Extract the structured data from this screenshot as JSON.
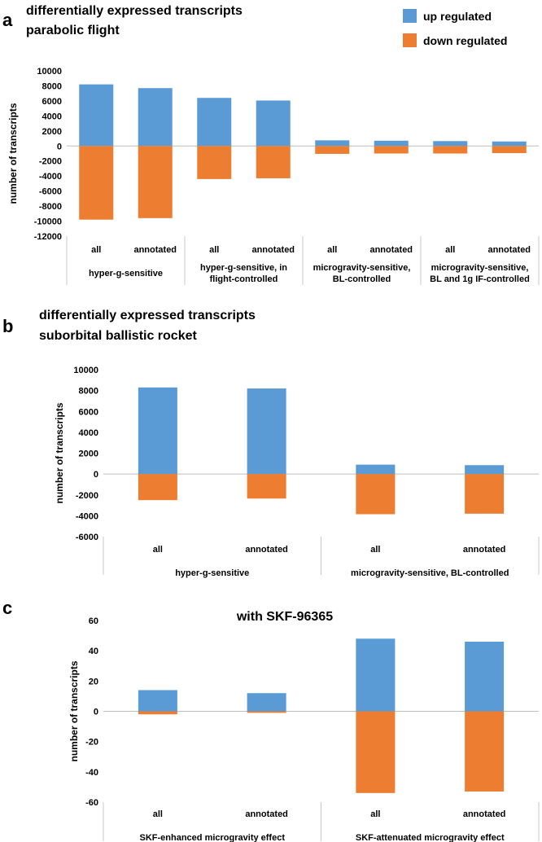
{
  "colors": {
    "up": "#5b9bd5",
    "down": "#ed7d31"
  },
  "legend": {
    "up_label": "up regulated",
    "down_label": "down regulated"
  },
  "chart_data": [
    {
      "panel": "a",
      "type": "bar",
      "title_lines": [
        "differentially expressed transcripts",
        "parabolic flight"
      ],
      "ylabel": "number of transcripts",
      "ylim": [
        -12000,
        10000
      ],
      "yticks": [
        -12000,
        -10000,
        -8000,
        -6000,
        -4000,
        -2000,
        0,
        2000,
        4000,
        6000,
        8000,
        10000
      ],
      "categories": [
        "all",
        "annotated",
        "all",
        "annotated",
        "all",
        "annotated",
        "all",
        "annotated"
      ],
      "groups": [
        {
          "lines": [
            "hyper-g-sensitive"
          ],
          "span": 2
        },
        {
          "lines": [
            "hyper-g-sensitive, in",
            "flight-controlled"
          ],
          "span": 2
        },
        {
          "lines": [
            "microgravity-sensitive,",
            "BL-controlled"
          ],
          "span": 2
        },
        {
          "lines": [
            "microgravity-sensitive,",
            "BL and 1g IF-controlled"
          ],
          "span": 2
        }
      ],
      "series": [
        {
          "name": "up regulated",
          "values": [
            8200,
            7700,
            6400,
            6050,
            750,
            700,
            650,
            600
          ]
        },
        {
          "name": "down regulated",
          "values": [
            -9800,
            -9600,
            -4400,
            -4300,
            -1050,
            -1000,
            -1000,
            -950
          ]
        }
      ]
    },
    {
      "panel": "b",
      "type": "bar",
      "title_lines": [
        "differentially expressed transcripts",
        "suborbital ballistic rocket"
      ],
      "ylabel": "number of transcripts",
      "ylim": [
        -6000,
        10000
      ],
      "yticks": [
        -6000,
        -4000,
        -2000,
        0,
        2000,
        4000,
        6000,
        8000,
        10000
      ],
      "categories": [
        "all",
        "annotated",
        "all",
        "annotated"
      ],
      "groups": [
        {
          "lines": [
            "hyper-g-sensitive"
          ],
          "span": 2
        },
        {
          "lines": [
            "microgravity-sensitive,  BL-controlled"
          ],
          "span": 2
        }
      ],
      "series": [
        {
          "name": "up regulated",
          "values": [
            8300,
            8200,
            900,
            850
          ]
        },
        {
          "name": "down regulated",
          "values": [
            -2500,
            -2350,
            -3850,
            -3800
          ]
        }
      ]
    },
    {
      "panel": "c",
      "type": "bar",
      "title_lines": [
        "with SKF-96365"
      ],
      "ylabel": "number of transcripts",
      "ylim": [
        -60,
        60
      ],
      "yticks": [
        -60,
        -40,
        -20,
        0,
        20,
        40,
        60
      ],
      "categories": [
        "all",
        "annotated",
        "all",
        "annotated"
      ],
      "groups": [
        {
          "lines": [
            "SKF-enhanced microgravity effect"
          ],
          "span": 2
        },
        {
          "lines": [
            "SKF-attenuated microgravity effect"
          ],
          "span": 2
        }
      ],
      "series": [
        {
          "name": "up regulated",
          "values": [
            14,
            12,
            48,
            46
          ]
        },
        {
          "name": "down regulated",
          "values": [
            -2,
            -1,
            -54,
            -53
          ]
        }
      ]
    }
  ]
}
